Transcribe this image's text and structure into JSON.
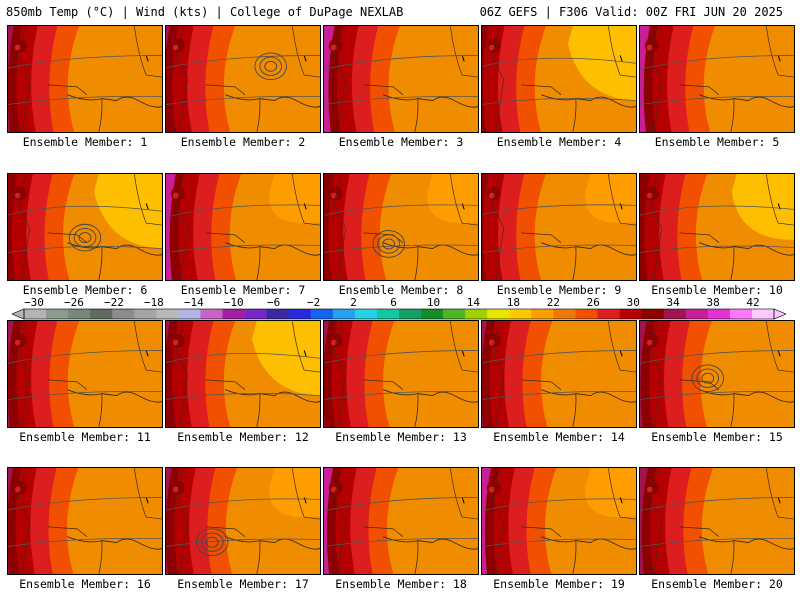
{
  "header": {
    "left": "850mb Temp (°C) | Wind (kts) | College of DuPage NEXLAB",
    "right": "06Z GEFS | F306 Valid: 00Z FRI JUN 20 2025"
  },
  "colorbar": {
    "tick_labels": [
      "−30",
      "−26",
      "−22",
      "−18",
      "−14",
      "−10",
      "−6",
      "−2",
      "2",
      "6",
      "10",
      "14",
      "18",
      "22",
      "26",
      "30",
      "34",
      "38",
      "42"
    ],
    "colors": [
      "#b4b4b4",
      "#8c9c8c",
      "#788878",
      "#606c60",
      "#8c8c8c",
      "#a4a4a4",
      "#b8b8b8",
      "#b4b4e6",
      "#c864c8",
      "#a020a0",
      "#7828c8",
      "#3c28a0",
      "#2828dc",
      "#1464f0",
      "#28a0f0",
      "#28d0e6",
      "#14c8a0",
      "#14a064",
      "#148c28",
      "#50b428",
      "#a0d200",
      "#e6e600",
      "#ffc800",
      "#ffa000",
      "#f07800",
      "#f05000",
      "#dc1e1e",
      "#b40000",
      "#8c0000",
      "#a01450",
      "#c81e96",
      "#e632d2",
      "#ff78ff",
      "#ffc8ff"
    ]
  },
  "panels": [
    {
      "label": "Ensemble Member: 1",
      "west": 0.3,
      "east": 0.0,
      "low": null
    },
    {
      "label": "Ensemble Member: 2",
      "west": 0.25,
      "east": 0.0,
      "low": [
        0.68,
        0.38
      ]
    },
    {
      "label": "Ensemble Member: 3",
      "west": 0.42,
      "east": 0.0,
      "low": null
    },
    {
      "label": "Ensemble Member: 4",
      "west": 0.12,
      "east": 0.4,
      "low": null
    },
    {
      "label": "Ensemble Member: 5",
      "west": 0.4,
      "east": 0.0,
      "low": null
    },
    {
      "label": "Ensemble Member: 6",
      "west": 0.18,
      "east": 0.4,
      "low": [
        0.5,
        0.6
      ]
    },
    {
      "label": "Ensemble Member: 7",
      "west": 0.4,
      "east": 0.1,
      "low": null
    },
    {
      "label": "Ensemble Member: 8",
      "west": 0.2,
      "east": 0.1,
      "low": [
        0.42,
        0.66
      ]
    },
    {
      "label": "Ensemble Member: 9",
      "west": 0.12,
      "east": 0.1,
      "low": null
    },
    {
      "label": "Ensemble Member: 10",
      "west": 0.2,
      "east": 0.3,
      "low": null
    },
    {
      "label": "Ensemble Member: 11",
      "west": 0.3,
      "east": 0.0,
      "low": null
    },
    {
      "label": "Ensemble Member: 12",
      "west": 0.25,
      "east": 0.4,
      "low": null
    },
    {
      "label": "Ensemble Member: 13",
      "west": 0.28,
      "east": 0.0,
      "low": null
    },
    {
      "label": "Ensemble Member: 14",
      "west": 0.28,
      "east": 0.0,
      "low": null
    },
    {
      "label": "Ensemble Member: 15",
      "west": 0.32,
      "east": 0.0,
      "low": [
        0.44,
        0.54
      ]
    },
    {
      "label": "Ensemble Member: 16",
      "west": 0.28,
      "east": 0.0,
      "low": null
    },
    {
      "label": "Ensemble Member: 17",
      "west": 0.3,
      "east": 0.1,
      "low": [
        0.3,
        0.7
      ]
    },
    {
      "label": "Ensemble Member: 18",
      "west": 0.38,
      "east": 0.0,
      "low": null
    },
    {
      "label": "Ensemble Member: 19",
      "west": 0.38,
      "east": 0.1,
      "low": null
    },
    {
      "label": "Ensemble Member: 20",
      "west": 0.35,
      "east": 0.0,
      "low": null
    }
  ]
}
